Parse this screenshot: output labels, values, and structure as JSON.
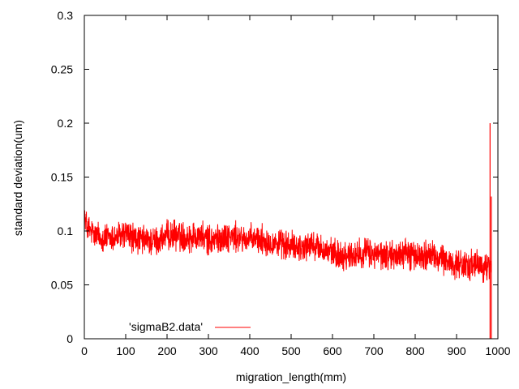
{
  "chart_data": {
    "type": "line",
    "title": "",
    "xlabel": "migration_length(mm)",
    "ylabel": "standard deviation(um)",
    "xlim": [
      0,
      1000
    ],
    "ylim": [
      0,
      0.3
    ],
    "x_ticks": [
      "0",
      "100",
      "200",
      "300",
      "400",
      "500",
      "600",
      "700",
      "800",
      "900",
      "1000"
    ],
    "y_ticks": [
      "0",
      "0.05",
      "0.1",
      "0.15",
      "0.2",
      "0.25",
      "0.3"
    ],
    "grid": false,
    "legend_position": "bottom-left",
    "series_color": "#ff0000",
    "noise_amplitude": 0.011,
    "series": [
      {
        "name": "'sigmaB2.data'",
        "x": [
          0,
          3,
          10,
          25,
          50,
          75,
          100,
          125,
          150,
          175,
          200,
          225,
          250,
          275,
          300,
          325,
          350,
          375,
          400,
          425,
          450,
          475,
          500,
          525,
          550,
          575,
          600,
          625,
          650,
          675,
          700,
          725,
          750,
          775,
          800,
          825,
          850,
          875,
          900,
          925,
          950,
          970,
          980,
          984
        ],
        "y": [
          0.118,
          0.107,
          0.101,
          0.096,
          0.093,
          0.094,
          0.097,
          0.092,
          0.091,
          0.09,
          0.095,
          0.096,
          0.094,
          0.096,
          0.091,
          0.093,
          0.095,
          0.093,
          0.092,
          0.092,
          0.09,
          0.087,
          0.086,
          0.085,
          0.087,
          0.083,
          0.079,
          0.077,
          0.078,
          0.08,
          0.078,
          0.077,
          0.077,
          0.08,
          0.076,
          0.078,
          0.076,
          0.072,
          0.069,
          0.068,
          0.068,
          0.066,
          0.066,
          0.068
        ]
      }
    ],
    "spikes": [
      {
        "x": 981,
        "y_low": 0.0,
        "y_high": 0.2
      },
      {
        "x": 984,
        "y_low": 0.0,
        "y_high": 0.132
      }
    ]
  }
}
